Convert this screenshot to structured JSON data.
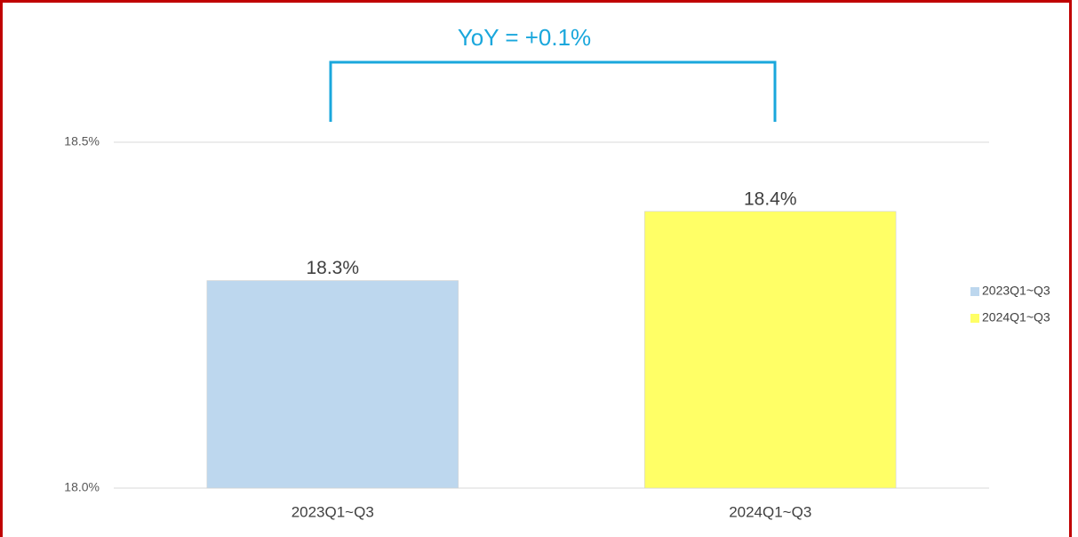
{
  "chart_data": {
    "type": "bar",
    "annotation": "YoY = +0.1%",
    "categories": [
      "2023Q1~Q3",
      "2024Q1~Q3"
    ],
    "values": [
      18.3,
      18.4
    ],
    "value_labels": [
      "18.3%",
      "18.4%"
    ],
    "colors": [
      "#bdd7ee",
      "#ffff66"
    ],
    "ylim": [
      18.0,
      18.5
    ],
    "yticks": [
      {
        "value": 18.0,
        "label": "18.0%"
      },
      {
        "value": 18.5,
        "label": "18.5%"
      }
    ],
    "grid": true,
    "legend": "right"
  }
}
